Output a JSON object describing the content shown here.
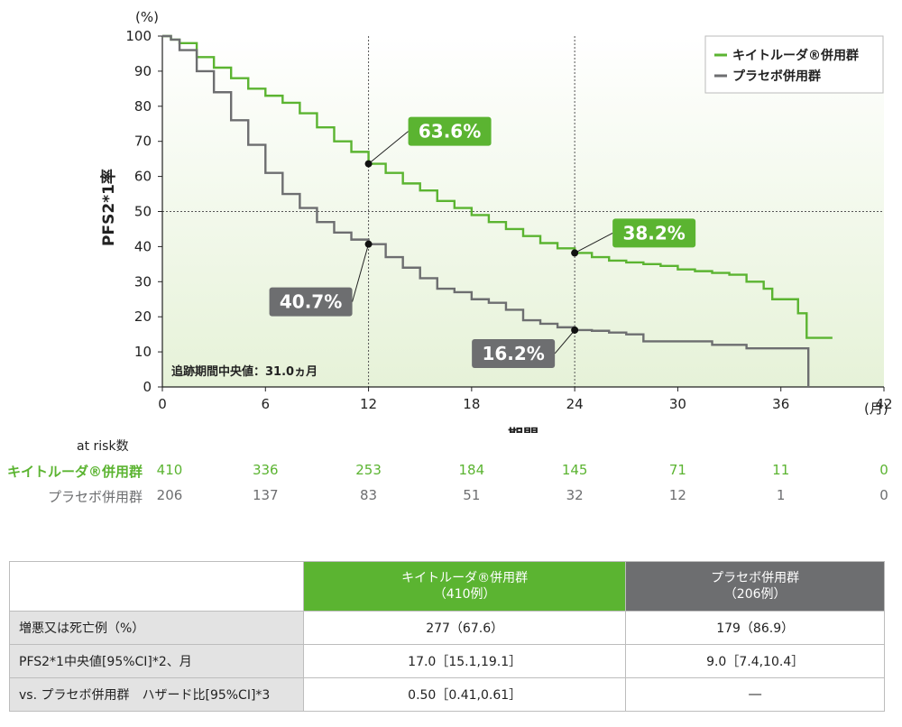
{
  "chart_data": {
    "type": "line",
    "ylabel_unit": "(%)",
    "ylabel": "PFS2*1率",
    "xlabel": "期間",
    "x_unit": "(月)",
    "xlim": [
      0,
      42
    ],
    "ylim": [
      0,
      100
    ],
    "x_ticks": [
      0,
      6,
      12,
      18,
      24,
      30,
      36,
      42
    ],
    "y_ticks": [
      0,
      10,
      20,
      30,
      40,
      50,
      60,
      70,
      80,
      90,
      100
    ],
    "reference_lines": {
      "x": [
        12,
        24
      ],
      "y": [
        50
      ]
    },
    "legend": {
      "placement": "top-right",
      "entries": [
        "キイトルーダ®併用群",
        "プラセボ併用群"
      ]
    },
    "note": "追跡期間中央値：31.0ヵ月",
    "colors": {
      "keytruda": "#5bb431",
      "placebo": "#6d6e70",
      "fill": "#eef6e4"
    },
    "series": [
      {
        "name": "キイトルーダ®併用群",
        "x": [
          0,
          0.5,
          1,
          2,
          3,
          4,
          5,
          6,
          7,
          8,
          9,
          10,
          11,
          12,
          13,
          14,
          15,
          16,
          17,
          18,
          19,
          20,
          21,
          22,
          23,
          24,
          25,
          26,
          27,
          28,
          29,
          30,
          31,
          32,
          33,
          34,
          35,
          35.5,
          36,
          36.5,
          37,
          37.2,
          37.5,
          38,
          38.5,
          39
        ],
        "y": [
          100,
          99,
          98,
          94,
          91,
          88,
          85,
          83,
          81,
          78,
          74,
          70,
          67,
          63.6,
          61,
          58,
          56,
          53,
          51,
          49,
          47,
          45,
          43,
          41,
          39.5,
          38.2,
          37,
          36,
          35.5,
          35,
          34.5,
          33.5,
          33,
          32.5,
          32,
          30,
          28,
          25,
          25,
          25,
          21,
          21,
          14,
          14,
          14,
          14
        ]
      },
      {
        "name": "プラセボ併用群",
        "x": [
          0,
          0.5,
          1,
          2,
          3,
          4,
          5,
          6,
          7,
          8,
          9,
          10,
          11,
          12,
          13,
          14,
          15,
          16,
          17,
          18,
          19,
          20,
          21,
          22,
          23,
          24,
          25,
          26,
          27,
          28,
          29,
          30,
          31,
          32,
          33,
          34,
          35,
          36,
          37,
          37.5,
          37.6
        ],
        "y": [
          100,
          99,
          96,
          90,
          84,
          76,
          69,
          61,
          55,
          51,
          47,
          44,
          42,
          40.7,
          37,
          34,
          31,
          28,
          27,
          25,
          24,
          22,
          19,
          18,
          17,
          16.2,
          16,
          15.5,
          15,
          13,
          13,
          13,
          13,
          12,
          12,
          11,
          11,
          11,
          11,
          11,
          0
        ]
      }
    ],
    "annotations": [
      {
        "series": 0,
        "x": 12,
        "y": 63.6,
        "label": "63.6%"
      },
      {
        "series": 0,
        "x": 24,
        "y": 38.2,
        "label": "38.2%"
      },
      {
        "series": 1,
        "x": 12,
        "y": 40.7,
        "label": "40.7%"
      },
      {
        "series": 1,
        "x": 24,
        "y": 16.2,
        "label": "16.2%"
      }
    ]
  },
  "at_risk": {
    "title": "at risk数",
    "rows": [
      {
        "label": "キイトルーダ®併用群",
        "values": [
          "410",
          "336",
          "253",
          "184",
          "145",
          "71",
          "11",
          "0"
        ],
        "color": "#5bb431"
      },
      {
        "label": "プラセボ併用群",
        "values": [
          "206",
          "137",
          "83",
          "51",
          "32",
          "12",
          "1",
          "0"
        ],
        "color": "#6d6e70"
      }
    ]
  },
  "table": {
    "header": {
      "keytruda_line1": "キイトルーダ®併用群",
      "keytruda_line2": "（410例）",
      "placebo_line1": "プラセボ併用群",
      "placebo_line2": "（206例）"
    },
    "rows": [
      {
        "label": "増悪又は死亡例（%）",
        "keytruda": "277（67.6）",
        "placebo": "179（86.9）"
      },
      {
        "label": "PFS2*1中央値[95%CI]*2、月",
        "keytruda": "17.0［15.1,19.1］",
        "placebo": "9.0［7.4,10.4］"
      },
      {
        "label": "vs. プラセボ併用群　ハザード比[95%CI]*3",
        "keytruda": "0.50［0.41,0.61］",
        "placebo": "―"
      }
    ]
  }
}
